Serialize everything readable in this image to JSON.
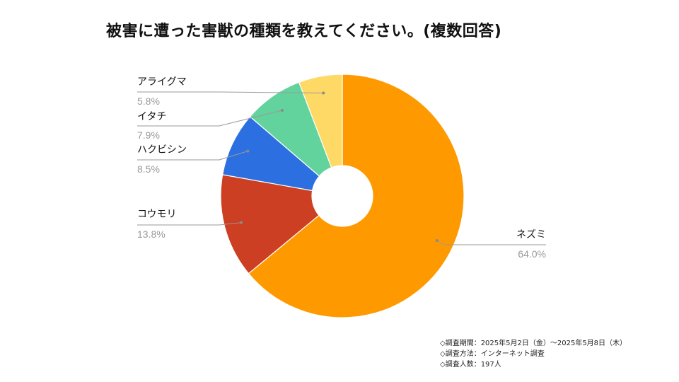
{
  "title": "被害に遭った害獣の種類を教えてください。(複数回答)",
  "chart_data": {
    "type": "pie",
    "donut": true,
    "title": "被害に遭った害獣の種類を教えてください。(複数回答)",
    "slices": [
      {
        "label": "ネズミ",
        "value": 64.0,
        "value_label": "64.0%",
        "color": "#FF9900"
      },
      {
        "label": "コウモリ",
        "value": 13.8,
        "value_label": "13.8%",
        "color": "#CC3F22"
      },
      {
        "label": "ハクビシン",
        "value": 8.5,
        "value_label": "8.5%",
        "color": "#2C6FE0"
      },
      {
        "label": "イタチ",
        "value": 7.9,
        "value_label": "7.9%",
        "color": "#62D39C"
      },
      {
        "label": "アライグマ",
        "value": 5.8,
        "value_label": "5.8%",
        "color": "#FFD966"
      }
    ],
    "legend": "none"
  },
  "notes": [
    "◇調査期間：2025年5月2日（金）～2025年5月8日（木）",
    "◇調査方法：インターネット調査",
    "◇調査人数：197人"
  ]
}
